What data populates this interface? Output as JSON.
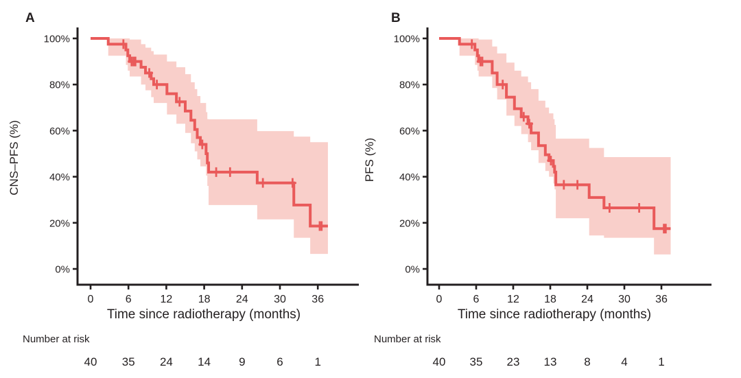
{
  "figure": {
    "background": "#ffffff",
    "text_color": "#231f20"
  },
  "chart_data": [
    {
      "type": "line",
      "variant": "kaplan-meier-step",
      "panel_label": "A",
      "ylabel": "CNS–PFS (%)",
      "xlabel": "Time since radiotherapy (months)",
      "x_ticks": [
        0,
        6,
        12,
        18,
        24,
        30,
        36
      ],
      "y_ticks": [
        "100%",
        "80%",
        "60%",
        "40%",
        "20%",
        "0%"
      ],
      "y_tick_values": [
        100,
        80,
        60,
        40,
        20,
        0
      ],
      "xlim": [
        0,
        39
      ],
      "ylim": [
        0,
        100
      ],
      "grid": false,
      "legend": "none",
      "line_color": "#e95a5a",
      "band_color": "#f9cfca",
      "end_time": 37.6,
      "steps": [
        [
          0,
          100
        ],
        [
          2.8,
          97.5
        ],
        [
          5.6,
          95
        ],
        [
          5.9,
          92.5
        ],
        [
          6.2,
          90
        ],
        [
          8.0,
          87.5
        ],
        [
          8.7,
          85
        ],
        [
          9.6,
          82.5
        ],
        [
          10.0,
          80
        ],
        [
          12.1,
          76
        ],
        [
          13.6,
          72.5
        ],
        [
          15.0,
          68.5
        ],
        [
          15.9,
          64.5
        ],
        [
          16.5,
          60.5
        ],
        [
          16.9,
          57
        ],
        [
          17.4,
          54
        ],
        [
          18.3,
          50
        ],
        [
          18.5,
          46
        ],
        [
          18.7,
          42
        ],
        [
          26.4,
          37.3
        ],
        [
          32.2,
          27.7
        ],
        [
          34.8,
          18.6
        ]
      ],
      "censors": [
        [
          5.2,
          97.5
        ],
        [
          6.5,
          90
        ],
        [
          6.8,
          90
        ],
        [
          7.1,
          90
        ],
        [
          9.3,
          85
        ],
        [
          10.5,
          80
        ],
        [
          14.1,
          72.5
        ],
        [
          17.7,
          54
        ],
        [
          19.9,
          42
        ],
        [
          22.1,
          42
        ],
        [
          27.3,
          37.3
        ],
        [
          32.0,
          37.3
        ],
        [
          36.3,
          18.6
        ],
        [
          36.6,
          18.6
        ]
      ],
      "band": [
        [
          2.8,
          100,
          92.5
        ],
        [
          5.6,
          100,
          88.5
        ],
        [
          5.9,
          100,
          86
        ],
        [
          6.2,
          99.5,
          83.5
        ],
        [
          8.0,
          97.5,
          80
        ],
        [
          8.7,
          96,
          77.5
        ],
        [
          9.6,
          94.5,
          74.5
        ],
        [
          10.0,
          93,
          72
        ],
        [
          12.1,
          90,
          67
        ],
        [
          13.6,
          87.5,
          63
        ],
        [
          15.0,
          84.5,
          59
        ],
        [
          15.9,
          81,
          54.5
        ],
        [
          16.5,
          78,
          51
        ],
        [
          16.9,
          75,
          47.5
        ],
        [
          17.4,
          72,
          44.5
        ],
        [
          18.3,
          68,
          40.5
        ],
        [
          18.5,
          65,
          36
        ],
        [
          18.7,
          64.9,
          27.7
        ],
        [
          26.4,
          59.8,
          21.5
        ],
        [
          32.2,
          57.4,
          13.5
        ],
        [
          34.8,
          55,
          6.5
        ]
      ],
      "number_at_risk": {
        "label": "Number at risk",
        "times": [
          0,
          6,
          12,
          18,
          24,
          30,
          36
        ],
        "counts": [
          40,
          35,
          24,
          14,
          9,
          6,
          1
        ]
      }
    },
    {
      "type": "line",
      "variant": "kaplan-meier-step",
      "panel_label": "B",
      "ylabel": "PFS (%)",
      "xlabel": "Time since radiotherapy (months)",
      "x_ticks": [
        0,
        6,
        12,
        18,
        24,
        30,
        36
      ],
      "y_ticks": [
        "100%",
        "80%",
        "60%",
        "40%",
        "20%",
        "0%"
      ],
      "y_tick_values": [
        100,
        80,
        60,
        40,
        20,
        0
      ],
      "xlim": [
        0,
        39
      ],
      "ylim": [
        0,
        100
      ],
      "grid": false,
      "legend": "none",
      "line_color": "#e95a5a",
      "band_color": "#f9cfca",
      "end_time": 37.5,
      "steps": [
        [
          0,
          100
        ],
        [
          3.3,
          97.5
        ],
        [
          5.8,
          95
        ],
        [
          6.2,
          92.5
        ],
        [
          6.4,
          90
        ],
        [
          8.6,
          85
        ],
        [
          9.4,
          80
        ],
        [
          10.9,
          74.5
        ],
        [
          12.2,
          69.5
        ],
        [
          13.3,
          66
        ],
        [
          14.4,
          63
        ],
        [
          14.9,
          59
        ],
        [
          16.1,
          53.5
        ],
        [
          17.2,
          49.5
        ],
        [
          17.8,
          47
        ],
        [
          18.5,
          44.5
        ],
        [
          18.7,
          42
        ],
        [
          18.9,
          36.5
        ],
        [
          24.3,
          31
        ],
        [
          26.7,
          26.5
        ],
        [
          34.8,
          17.5
        ]
      ],
      "censors": [
        [
          5.3,
          97.5
        ],
        [
          6.7,
          90
        ],
        [
          7.0,
          90
        ],
        [
          10.3,
          80
        ],
        [
          13.7,
          66
        ],
        [
          14.6,
          63
        ],
        [
          18.1,
          47
        ],
        [
          20.2,
          36.5
        ],
        [
          22.4,
          36.5
        ],
        [
          27.6,
          26.5
        ],
        [
          32.4,
          26.5
        ],
        [
          36.4,
          17.5
        ],
        [
          36.7,
          17.5
        ]
      ],
      "band": [
        [
          3.3,
          100,
          92.5
        ],
        [
          5.8,
          100,
          88.5
        ],
        [
          6.2,
          100,
          86
        ],
        [
          6.4,
          99.5,
          83.5
        ],
        [
          8.6,
          96.5,
          78.5
        ],
        [
          9.4,
          93.5,
          73.5
        ],
        [
          10.9,
          89.5,
          66.5
        ],
        [
          12.2,
          86,
          62
        ],
        [
          13.3,
          83.5,
          58.5
        ],
        [
          14.4,
          81,
          55
        ],
        [
          14.9,
          78,
          51.5
        ],
        [
          16.1,
          73,
          46
        ],
        [
          17.2,
          70,
          42.5
        ],
        [
          17.8,
          67.5,
          40
        ],
        [
          18.5,
          65,
          37
        ],
        [
          18.7,
          62.5,
          34.5
        ],
        [
          18.9,
          56.5,
          22
        ],
        [
          24.3,
          52.5,
          14.5
        ],
        [
          26.7,
          48.5,
          13.5
        ],
        [
          34.8,
          48.5,
          6.3
        ]
      ],
      "number_at_risk": {
        "label": "Number at risk",
        "times": [
          0,
          6,
          12,
          18,
          24,
          30,
          36
        ],
        "counts": [
          40,
          35,
          23,
          13,
          8,
          4,
          1
        ]
      }
    }
  ]
}
